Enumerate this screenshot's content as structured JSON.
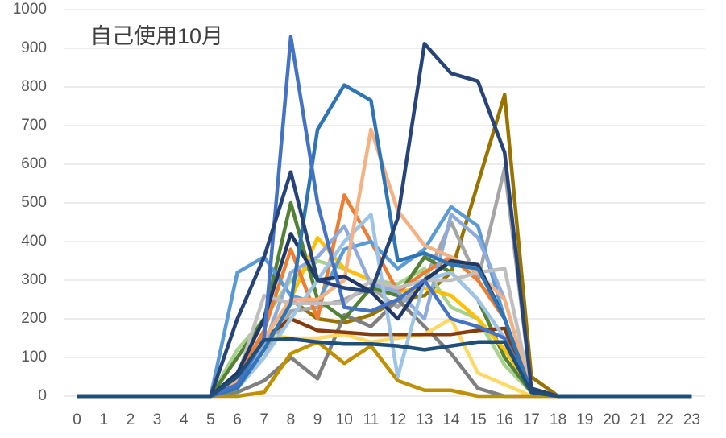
{
  "chart_data": {
    "type": "line",
    "title": "自己使用10月",
    "categories": [
      "0",
      "1",
      "2",
      "3",
      "4",
      "5",
      "6",
      "7",
      "8",
      "9",
      "10",
      "11",
      "12",
      "13",
      "14",
      "15",
      "16",
      "17",
      "18",
      "19",
      "20",
      "21",
      "22",
      "23"
    ],
    "ylim": [
      0,
      1000
    ],
    "yticks": [
      0,
      100,
      200,
      300,
      400,
      500,
      600,
      700,
      800,
      900,
      1000
    ],
    "grid": true,
    "series": [
      {
        "color": "#997300",
        "values": [
          0,
          0,
          0,
          0,
          0,
          0,
          50,
          150,
          250,
          200,
          190,
          210,
          250,
          260,
          320,
          550,
          780,
          50,
          0,
          0,
          0,
          0,
          0,
          0
        ]
      },
      {
        "color": "#a5a5a5",
        "values": [
          0,
          0,
          0,
          0,
          0,
          0,
          20,
          100,
          220,
          230,
          250,
          280,
          230,
          300,
          450,
          300,
          590,
          20,
          0,
          0,
          0,
          0,
          0,
          0
        ]
      },
      {
        "color": "#7f7f7f",
        "values": [
          0,
          0,
          0,
          0,
          0,
          0,
          10,
          40,
          100,
          45,
          210,
          180,
          250,
          180,
          110,
          20,
          0,
          0,
          0,
          0,
          0,
          0,
          0,
          0
        ]
      },
      {
        "color": "#a9d18e",
        "values": [
          0,
          0,
          0,
          0,
          0,
          0,
          120,
          200,
          300,
          350,
          330,
          300,
          290,
          330,
          230,
          200,
          80,
          10,
          0,
          0,
          0,
          0,
          0,
          0
        ]
      },
      {
        "color": "#548235",
        "values": [
          0,
          0,
          0,
          0,
          0,
          0,
          100,
          200,
          500,
          250,
          200,
          280,
          260,
          360,
          320,
          250,
          100,
          10,
          0,
          0,
          0,
          0,
          0,
          0
        ]
      },
      {
        "color": "#ffc000",
        "values": [
          0,
          0,
          0,
          0,
          0,
          0,
          20,
          150,
          250,
          410,
          330,
          300,
          270,
          280,
          260,
          200,
          120,
          20,
          0,
          0,
          0,
          0,
          0,
          0
        ]
      },
      {
        "color": "#ffd966",
        "values": [
          0,
          0,
          0,
          0,
          0,
          0,
          30,
          160,
          150,
          150,
          160,
          140,
          150,
          160,
          200,
          60,
          30,
          0,
          0,
          0,
          0,
          0,
          0,
          0
        ]
      },
      {
        "color": "#bf9000",
        "values": [
          0,
          0,
          0,
          0,
          0,
          0,
          0,
          10,
          110,
          140,
          85,
          130,
          40,
          15,
          15,
          0,
          0,
          0,
          0,
          0,
          0,
          0,
          0,
          0
        ]
      },
      {
        "color": "#843c0c",
        "values": [
          0,
          0,
          0,
          0,
          0,
          0,
          30,
          150,
          200,
          170,
          165,
          160,
          160,
          160,
          160,
          170,
          175,
          10,
          0,
          0,
          0,
          0,
          0,
          0
        ]
      },
      {
        "color": "#ed7d31",
        "values": [
          0,
          0,
          0,
          0,
          0,
          0,
          50,
          170,
          380,
          200,
          520,
          400,
          270,
          320,
          360,
          300,
          200,
          10,
          0,
          0,
          0,
          0,
          0,
          0
        ]
      },
      {
        "color": "#5b9bd5",
        "values": [
          0,
          0,
          0,
          0,
          0,
          0,
          320,
          360,
          260,
          240,
          380,
          400,
          330,
          380,
          490,
          440,
          200,
          10,
          0,
          0,
          0,
          0,
          0,
          0
        ]
      },
      {
        "color": "#8faadc",
        "values": [
          0,
          0,
          0,
          0,
          0,
          0,
          20,
          130,
          320,
          360,
          440,
          290,
          270,
          200,
          470,
          410,
          250,
          10,
          0,
          0,
          0,
          0,
          0,
          0
        ]
      },
      {
        "color": "#9dc3e6",
        "values": [
          0,
          0,
          0,
          0,
          0,
          0,
          20,
          100,
          200,
          300,
          400,
          470,
          50,
          300,
          320,
          250,
          150,
          10,
          0,
          0,
          0,
          0,
          0,
          0
        ]
      },
      {
        "color": "#bfbfbf",
        "values": [
          0,
          0,
          0,
          0,
          0,
          0,
          50,
          260,
          240,
          240,
          240,
          300,
          280,
          300,
          300,
          320,
          330,
          10,
          0,
          0,
          0,
          0,
          0,
          0
        ]
      },
      {
        "color": "#f4b183",
        "values": [
          0,
          0,
          0,
          0,
          0,
          0,
          40,
          150,
          250,
          250,
          300,
          690,
          480,
          390,
          360,
          320,
          250,
          10,
          0,
          0,
          0,
          0,
          0,
          0
        ]
      },
      {
        "color": "#203864",
        "values": [
          0,
          0,
          0,
          0,
          0,
          0,
          60,
          200,
          420,
          300,
          310,
          270,
          200,
          300,
          350,
          340,
          200,
          10,
          0,
          0,
          0,
          0,
          0,
          0
        ]
      },
      {
        "color": "#2e75b6",
        "values": [
          0,
          0,
          0,
          0,
          0,
          0,
          20,
          120,
          240,
          690,
          805,
          765,
          350,
          370,
          340,
          330,
          200,
          10,
          0,
          0,
          0,
          0,
          0,
          0
        ]
      },
      {
        "color": "#4472c4",
        "values": [
          0,
          0,
          0,
          0,
          0,
          0,
          30,
          150,
          930,
          500,
          230,
          220,
          250,
          300,
          200,
          180,
          150,
          10,
          0,
          0,
          0,
          0,
          0,
          0
        ]
      },
      {
        "color": "#264478",
        "values": [
          0,
          0,
          0,
          0,
          0,
          0,
          200,
          360,
          580,
          300,
          280,
          270,
          460,
          912,
          835,
          815,
          630,
          20,
          0,
          0,
          0,
          0,
          0,
          0
        ]
      },
      {
        "color": "#1f4e79",
        "values": [
          0,
          0,
          0,
          0,
          0,
          0,
          50,
          145,
          148,
          140,
          135,
          135,
          130,
          120,
          130,
          140,
          140,
          10,
          0,
          0,
          0,
          0,
          0,
          0
        ]
      }
    ]
  }
}
